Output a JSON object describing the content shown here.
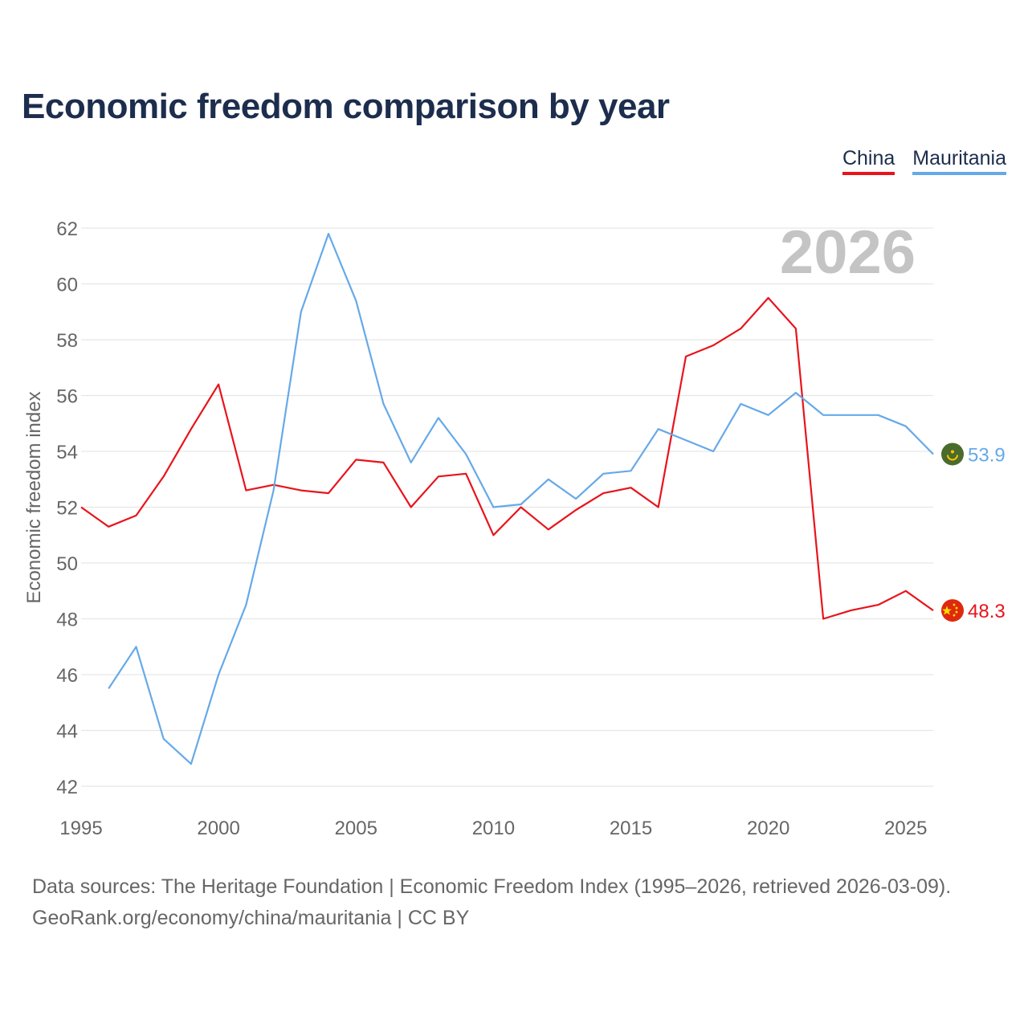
{
  "title": "Economic freedom comparison by year",
  "legend": [
    {
      "name": "China",
      "color": "#e8141c"
    },
    {
      "name": "Mauritania",
      "color": "#66a9e8"
    }
  ],
  "year_label": "2026",
  "footer": {
    "line1": "Data sources: The Heritage Foundation | Economic Freedom Index (1995–2026, retrieved 2026-03-09).",
    "line2": "GeoRank.org/economy/china/mauritania | CC BY"
  },
  "colors": {
    "china": "#e8141c",
    "mauritania": "#66a9e8",
    "title": "#1c2d4d",
    "grid": "#e6e6e6",
    "axis_text": "#666666",
    "year_watermark": "#c4c4c4"
  },
  "chart_data": {
    "type": "line",
    "title": "Economic freedom comparison by year",
    "xlabel": "",
    "ylabel": "Economic freedom index",
    "xlim": [
      1995,
      2026
    ],
    "ylim": [
      42,
      62
    ],
    "xticks": [
      1995,
      2000,
      2005,
      2010,
      2015,
      2020,
      2025
    ],
    "yticks": [
      42,
      44,
      46,
      48,
      50,
      52,
      54,
      56,
      58,
      60,
      62
    ],
    "series": [
      {
        "name": "China",
        "color": "#e8141c",
        "flag_icon": "china-flag-icon",
        "end_label": "48.3",
        "points": [
          [
            1995,
            52.0
          ],
          [
            1996,
            51.3
          ],
          [
            1997,
            51.7
          ],
          [
            1998,
            53.1
          ],
          [
            1999,
            54.8
          ],
          [
            2000,
            56.4
          ],
          [
            2001,
            52.6
          ],
          [
            2002,
            52.8
          ],
          [
            2003,
            52.6
          ],
          [
            2004,
            52.5
          ],
          [
            2005,
            53.7
          ],
          [
            2006,
            53.6
          ],
          [
            2007,
            52.0
          ],
          [
            2008,
            53.1
          ],
          [
            2009,
            53.2
          ],
          [
            2010,
            51.0
          ],
          [
            2011,
            52.0
          ],
          [
            2012,
            51.2
          ],
          [
            2013,
            51.9
          ],
          [
            2014,
            52.5
          ],
          [
            2015,
            52.7
          ],
          [
            2016,
            52.0
          ],
          [
            2017,
            57.4
          ],
          [
            2018,
            57.8
          ],
          [
            2019,
            58.4
          ],
          [
            2020,
            59.5
          ],
          [
            2021,
            58.4
          ],
          [
            2022,
            48.0
          ],
          [
            2023,
            48.3
          ],
          [
            2024,
            48.5
          ],
          [
            2025,
            49.0
          ],
          [
            2026,
            48.3
          ]
        ]
      },
      {
        "name": "Mauritania",
        "color": "#66a9e8",
        "flag_icon": "mauritania-flag-icon",
        "end_label": "53.9",
        "points": [
          [
            1996,
            45.5
          ],
          [
            1997,
            47.0
          ],
          [
            1998,
            43.7
          ],
          [
            1999,
            42.8
          ],
          [
            2000,
            46.0
          ],
          [
            2001,
            48.5
          ],
          [
            2002,
            52.6
          ],
          [
            2003,
            59.0
          ],
          [
            2004,
            61.8
          ],
          [
            2005,
            59.4
          ],
          [
            2006,
            55.7
          ],
          [
            2007,
            53.6
          ],
          [
            2008,
            55.2
          ],
          [
            2009,
            53.9
          ],
          [
            2010,
            52.0
          ],
          [
            2011,
            52.1
          ],
          [
            2012,
            53.0
          ],
          [
            2013,
            52.3
          ],
          [
            2014,
            53.2
          ],
          [
            2015,
            53.3
          ],
          [
            2016,
            54.8
          ],
          [
            2017,
            54.4
          ],
          [
            2018,
            54.0
          ],
          [
            2019,
            55.7
          ],
          [
            2020,
            55.3
          ],
          [
            2021,
            56.1
          ],
          [
            2022,
            55.3
          ],
          [
            2023,
            55.3
          ],
          [
            2024,
            55.3
          ],
          [
            2025,
            54.9
          ],
          [
            2026,
            53.9
          ]
        ]
      }
    ]
  }
}
